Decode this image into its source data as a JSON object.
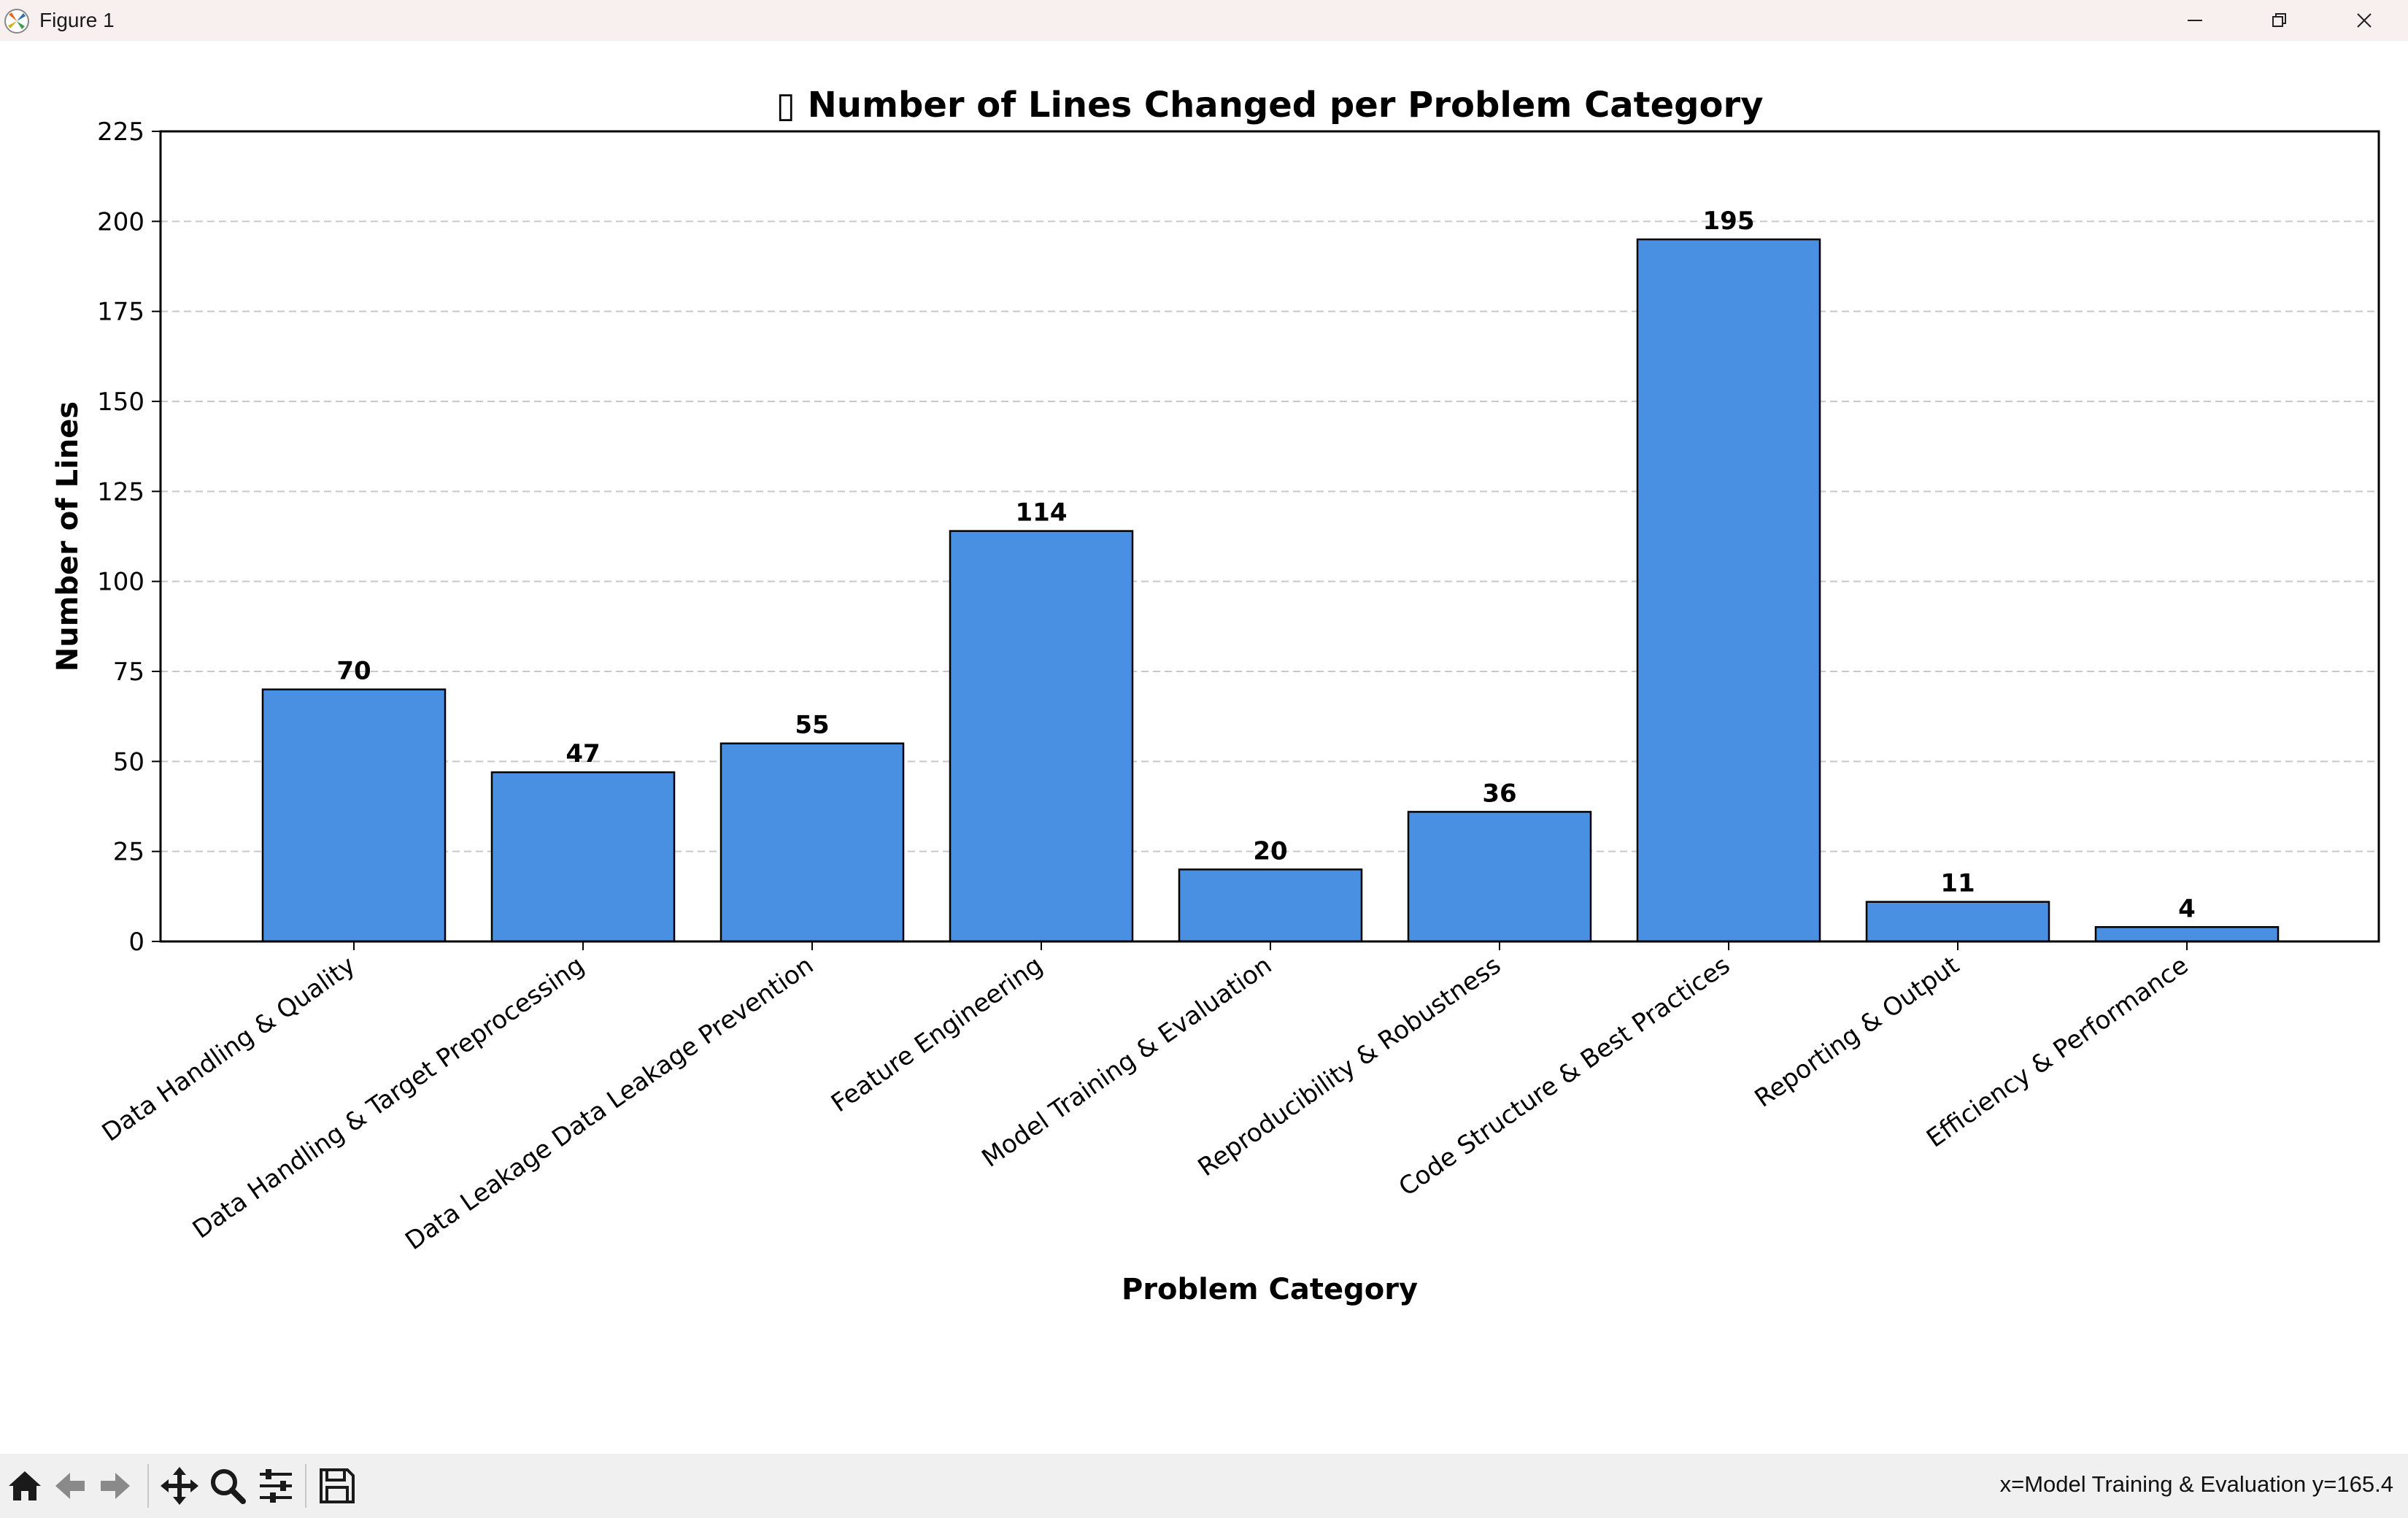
{
  "window": {
    "title": "Figure 1"
  },
  "toolbar": {
    "tools": [
      "home-icon",
      "back-arrow-icon",
      "forward-arrow-icon",
      "pan-icon",
      "zoom-icon",
      "configure-subplots-icon",
      "save-icon"
    ],
    "status_text": "x=Model Training & Evaluation y=165.4"
  },
  "colors": {
    "bar_fill": "#4a90e2",
    "bar_edge": "#000000",
    "grid": "#c8c8c8",
    "titlebar_bg": "#f8f0ee",
    "toolbar_bg": "#f0f0f0"
  },
  "chart_data": {
    "type": "bar",
    "title": "▯ Number of Lines Changed per Problem Category",
    "xlabel": "Problem Category",
    "ylabel": "Number of Lines",
    "categories": [
      "Data Handling & Quality",
      "Data Handling & Target Preprocessing",
      "Data Leakage Data Leakage Prevention",
      "Feature Engineering",
      "Model Training & Evaluation",
      "Reproducibility & Robustness",
      "Code Structure & Best Practices",
      "Reporting & Output",
      "Efficiency & Performance"
    ],
    "values": [
      70,
      47,
      55,
      114,
      20,
      36,
      195,
      11,
      4
    ],
    "data_labels": [
      "70",
      "47",
      "55",
      "114",
      "20",
      "36",
      "195",
      "11",
      "4"
    ],
    "ylim": [
      0,
      225
    ],
    "yticks": [
      0,
      25,
      50,
      75,
      100,
      125,
      150,
      175,
      200,
      225
    ],
    "ytick_labels": [
      "0",
      "25",
      "50",
      "75",
      "100",
      "125",
      "150",
      "175",
      "200",
      "225"
    ],
    "grid": "y-axis dashed",
    "legend": "none",
    "xtick_rotation": "35deg"
  }
}
